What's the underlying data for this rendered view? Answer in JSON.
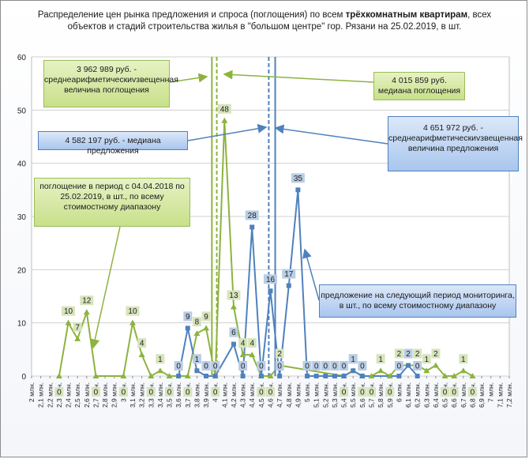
{
  "title": {
    "prefix": "Распределение цен рынка предложения и спроса (поглощения) по всем ",
    "bold": "трёхкомнатным квартирам",
    "line1_suffix": ", всех",
    "line2": "объектов и стадий строительства жилья в \"большом центре\" гор. Рязани  на 25.02.2019, в шт."
  },
  "annotations": {
    "mean_absorption": "3 962 989 руб. - среднеарифметическиvзвещенная величина поглощения",
    "median_absorption": "4 015 859 руб. медиана поглощения",
    "median_offer": "4 582 197 руб. - медиана предложения",
    "mean_offer": "4 651 972 руб. - среднеарифметическиvзвещенная величина предложения",
    "absorption_legend": "поглощение в период с 04.04.2018 по 25.02.2019, в шт., по всему стоимостному диапазону",
    "offer_legend": "предложение на следующий период мониторинга, в шт., по всему стоимостному диапазону"
  },
  "chart_data": {
    "type": "line",
    "x_labels": [
      "2 млн.",
      "2,1 млн.",
      "2,2 млн.",
      "2,3 млн.",
      "2,4 млн.",
      "2,5 млн.",
      "2,6 млн.",
      "2,7 млн.",
      "2,8 млн.",
      "2,9 млн.",
      "3 млн.",
      "3,1 млн.",
      "3,2 млн.",
      "3,3 млн.",
      "3,4 млн.",
      "3,5 млн.",
      "3,6 млн.",
      "3,7 млн.",
      "3,8 млн.",
      "3,9 млн.",
      "4 млн.",
      "4,1 млн.",
      "4,2 млн.",
      "4,3 млн.",
      "4,4 млн.",
      "4,5 млн.",
      "4,6 млн.",
      "4,7 млн.",
      "4,8 млн.",
      "4,9 млн.",
      "5 млн.",
      "5,1 млн.",
      "5,2 млн.",
      "5,3 млн.",
      "5,4 млн.",
      "5,5 млн.",
      "5,6 млн.",
      "5,7 млн.",
      "5,8 млн.",
      "5,9 млн.",
      "6 млн.",
      "6,1 млн.",
      "6,2 млн.",
      "6,3 млн.",
      "6,4 млн.",
      "6,5 млн.",
      "6,6 млн.",
      "6,7 млн.",
      "6,8 млн.",
      "6,9 млн.",
      "7 млн.",
      "7,1 млн.",
      "7,2 млн."
    ],
    "ylim": [
      0,
      60
    ],
    "y_ticks": [
      0,
      10,
      20,
      30,
      40,
      50,
      60
    ],
    "grid": true,
    "colors": {
      "absorption": "#8db33f",
      "offer": "#4f81bd",
      "absorption_label_bg": "#d7e4bc",
      "offer_label_bg": "#b9cde5"
    },
    "series": [
      {
        "key": "absorption",
        "points": [
          {
            "x": 2.3,
            "y": 0
          },
          {
            "x": 2.4,
            "y": 10
          },
          {
            "x": 2.5,
            "y": 7
          },
          {
            "x": 2.6,
            "y": 12
          },
          {
            "x": 2.7,
            "y": 0
          },
          {
            "x": 3.0,
            "y": 0
          },
          {
            "x": 3.1,
            "y": 10
          },
          {
            "x": 3.2,
            "y": 4
          },
          {
            "x": 3.3,
            "y": 0
          },
          {
            "x": 3.4,
            "y": 1
          },
          {
            "x": 3.5,
            "y": 0
          },
          {
            "x": 3.7,
            "y": 0
          },
          {
            "x": 3.8,
            "y": 8
          },
          {
            "x": 3.9,
            "y": 9
          },
          {
            "x": 4.0,
            "y": 0
          },
          {
            "x": 4.1,
            "y": 48
          },
          {
            "x": 4.2,
            "y": 13
          },
          {
            "x": 4.3,
            "y": 4
          },
          {
            "x": 4.4,
            "y": 4
          },
          {
            "x": 4.5,
            "y": 0
          },
          {
            "x": 4.6,
            "y": 0
          },
          {
            "x": 4.7,
            "y": 2
          },
          {
            "x": 5.4,
            "y": 0
          },
          {
            "x": 5.5,
            "y": 1
          },
          {
            "x": 5.6,
            "y": 0
          },
          {
            "x": 5.7,
            "y": 0
          },
          {
            "x": 5.8,
            "y": 1
          },
          {
            "x": 5.9,
            "y": 0
          },
          {
            "x": 6.0,
            "y": 2
          },
          {
            "x": 6.2,
            "y": 2
          },
          {
            "x": 6.3,
            "y": 1
          },
          {
            "x": 6.4,
            "y": 2
          },
          {
            "x": 6.5,
            "y": 0
          },
          {
            "x": 6.6,
            "y": 0
          },
          {
            "x": 6.7,
            "y": 1
          },
          {
            "x": 6.8,
            "y": 0
          }
        ]
      },
      {
        "key": "offer",
        "points": [
          {
            "x": 3.6,
            "y": 0
          },
          {
            "x": 3.7,
            "y": 9
          },
          {
            "x": 3.8,
            "y": 1
          },
          {
            "x": 3.9,
            "y": 0
          },
          {
            "x": 4.0,
            "y": 0
          },
          {
            "x": 4.2,
            "y": 6
          },
          {
            "x": 4.3,
            "y": 0
          },
          {
            "x": 4.4,
            "y": 28
          },
          {
            "x": 4.5,
            "y": 0
          },
          {
            "x": 4.6,
            "y": 16
          },
          {
            "x": 4.7,
            "y": 0
          },
          {
            "x": 4.8,
            "y": 17
          },
          {
            "x": 4.9,
            "y": 35
          },
          {
            "x": 5.0,
            "y": 0
          },
          {
            "x": 5.1,
            "y": 0
          },
          {
            "x": 5.2,
            "y": 0
          },
          {
            "x": 5.3,
            "y": 0
          },
          {
            "x": 5.4,
            "y": 0
          },
          {
            "x": 5.5,
            "y": 1
          },
          {
            "x": 5.6,
            "y": 0
          },
          {
            "x": 6.0,
            "y": 0
          },
          {
            "x": 6.1,
            "y": 2
          },
          {
            "x": 6.2,
            "y": 0
          }
        ]
      }
    ],
    "reference_lines": [
      {
        "key": "mean_absorption",
        "x": 3.963,
        "series": "absorption",
        "style": "solid"
      },
      {
        "key": "median_absorption",
        "x": 4.016,
        "series": "absorption",
        "style": "dashed"
      },
      {
        "key": "median_offer",
        "x": 4.582,
        "series": "offer",
        "style": "dashed"
      },
      {
        "key": "mean_offer",
        "x": 4.652,
        "series": "offer",
        "style": "solid"
      }
    ]
  }
}
